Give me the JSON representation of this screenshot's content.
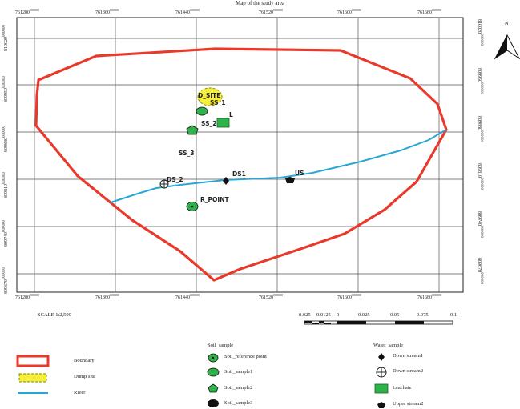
{
  "title": "Map of the study area",
  "north_label": "N",
  "scale_text": "SCALE 1:2,500",
  "scalebar_ticks": [
    "0.025",
    "0.0125",
    "0",
    "0.025",
    "0.05",
    "0.075",
    "0.1"
  ],
  "x_ticks": [
    {
      "main": "761280",
      "sup": "000000"
    },
    {
      "main": "761360",
      "sup": "000000"
    },
    {
      "main": "761440",
      "sup": "000000"
    },
    {
      "main": "761520",
      "sup": "000000"
    },
    {
      "main": "761600",
      "sup": "000000"
    },
    {
      "main": "761680",
      "sup": "000000"
    }
  ],
  "y_ticks": [
    {
      "main": "810020",
      "sup": "000000"
    },
    {
      "main": "809950",
      "sup": "000000"
    },
    {
      "main": "809880",
      "sup": "000000"
    },
    {
      "main": "809810",
      "sup": "000000"
    },
    {
      "main": "809740",
      "sup": "000000"
    },
    {
      "main": "809670",
      "sup": "000000"
    }
  ],
  "features": {
    "dump": "D_SITE",
    "ss1": "SS_1",
    "leachate": "L",
    "ss2": "SS_2",
    "ss3": "SS_3",
    "ds2": "DS_2",
    "ds1": "DS1",
    "us": "US",
    "ref": "R_POINT"
  },
  "legend": {
    "boundary": "Boundary",
    "dump_site": "Dump site",
    "river": "River",
    "soil_header": "Soil_sample",
    "soil_ref": "Soil_reference point",
    "soil1": "Soil_sample1",
    "soil2": "Soil_sample2",
    "soil3": "Soil_sample3",
    "water_header": "Water_sample",
    "down1": "Down stream1",
    "down2": "Down stream2",
    "leachate": "Leachate",
    "upper2": "Upper stream2"
  },
  "colors": {
    "boundary": "#e8392b",
    "river": "#2aa6d6",
    "soil_green": "#2fb24a",
    "dump_yellow": "#f5ee3a",
    "leachate_green": "#2fb24a"
  }
}
